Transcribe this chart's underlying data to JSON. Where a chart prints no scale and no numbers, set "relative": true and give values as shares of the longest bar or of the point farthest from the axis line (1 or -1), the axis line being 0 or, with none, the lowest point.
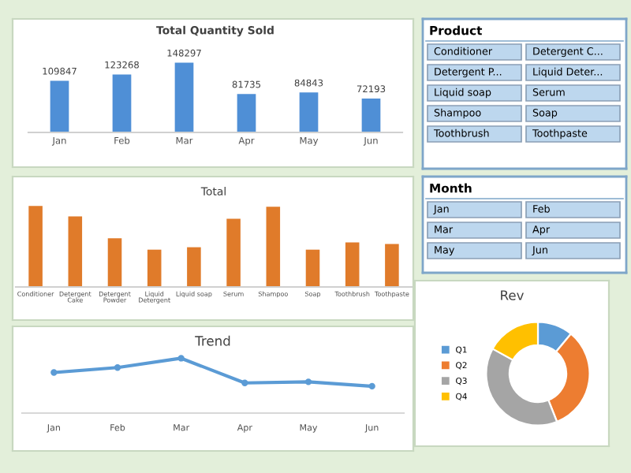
{
  "chart_data": [
    {
      "type": "bar",
      "title": "Total Quantity Sold",
      "categories": [
        "Jan",
        "Feb",
        "Mar",
        "Apr",
        "May",
        "Jun"
      ],
      "values": [
        109847,
        123268,
        148297,
        81735,
        84843,
        72193
      ],
      "color": "#4f8fd6",
      "data_labels": true
    },
    {
      "type": "other",
      "title": "Product",
      "categories": [
        "Conditioner",
        "Detergent C...",
        "Detergent P...",
        "Liquid Deter...",
        "Liquid soap",
        "Serum",
        "Shampoo",
        "Soap",
        "Toothbrush",
        "Toothpaste"
      ]
    },
    {
      "type": "bar",
      "title": "Total",
      "relative": true,
      "categories": [
        "Conditioner",
        "Detergent Cake",
        "Detergent Powder",
        "Liquid Detergent",
        "Liquid soap",
        "Serum",
        "Shampoo",
        "Soap",
        "Toothbrush",
        "Toothpaste"
      ],
      "values": [
        1,
        0.87,
        0.6,
        0.46,
        0.49,
        0.84,
        0.99,
        0.46,
        0.55,
        0.53
      ],
      "color": "#e07b2a"
    },
    {
      "type": "other",
      "title": "Month",
      "categories": [
        "Jan",
        "Feb",
        "Mar",
        "Apr",
        "May",
        "Jun"
      ]
    },
    {
      "type": "line",
      "title": "Trend",
      "relative": true,
      "categories": [
        "Jan",
        "Feb",
        "Mar",
        "Apr",
        "May",
        "Jun"
      ],
      "values": [
        0.74,
        0.83,
        1,
        0.55,
        0.57,
        0.49
      ],
      "color": "#5b9bd5",
      "marker": "circle",
      "line_style": "solid"
    },
    {
      "type": "donut",
      "title": "Rev",
      "categories": [
        "Q1",
        "Q2",
        "Q3",
        "Q4"
      ],
      "values": [
        11,
        33,
        39,
        17
      ],
      "colors": [
        "#5b9bd5",
        "#ed7d31",
        "#a5a5a5",
        "#ffc000"
      ],
      "legend": "left"
    }
  ]
}
